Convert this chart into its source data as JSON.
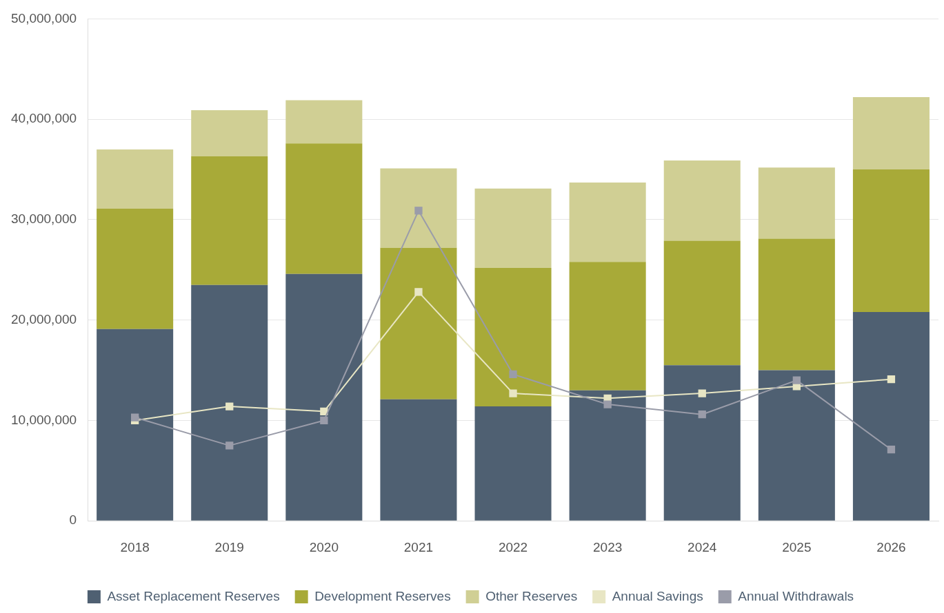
{
  "chart_data": {
    "type": "bar",
    "stacked": true,
    "categories": [
      "2018",
      "2019",
      "2020",
      "2021",
      "2022",
      "2023",
      "2024",
      "2025",
      "2026"
    ],
    "series": [
      {
        "name": "Asset Replacement Reserves",
        "color": "#4f6072",
        "values": [
          19100000,
          23500000,
          24600000,
          12100000,
          11400000,
          13000000,
          15500000,
          15000000,
          20800000
        ]
      },
      {
        "name": "Development Reserves",
        "color": "#a8aa38",
        "values": [
          12000000,
          12800000,
          13000000,
          15100000,
          13800000,
          12800000,
          12400000,
          13100000,
          14200000
        ]
      },
      {
        "name": "Other Reserves",
        "color": "#d0cf94",
        "values": [
          5900000,
          4600000,
          4300000,
          7900000,
          7900000,
          7900000,
          8000000,
          7100000,
          7200000
        ]
      },
      {
        "name": "Annual Savings",
        "type": "line",
        "color": "#e8e6c4",
        "values": [
          10000000,
          11400000,
          10900000,
          22800000,
          12700000,
          12200000,
          12700000,
          13400000,
          14100000
        ]
      },
      {
        "name": "Annual Withdrawals",
        "type": "line",
        "color": "#9a9ca9",
        "values": [
          10300000,
          7500000,
          10000000,
          30900000,
          14600000,
          11600000,
          10600000,
          14000000,
          7100000
        ]
      }
    ],
    "ylim": [
      0,
      50000000
    ],
    "yticks": [
      {
        "value": 0,
        "label": "0"
      },
      {
        "value": 10000000,
        "label": "10,000,000"
      },
      {
        "value": 20000000,
        "label": "20,000,000"
      },
      {
        "value": 30000000,
        "label": "30,000,000"
      },
      {
        "value": 40000000,
        "label": "40,000,000"
      },
      {
        "value": 50000000,
        "label": "50,000,000"
      }
    ],
    "grid": "y",
    "legend": "bottom",
    "marker": "square",
    "line_style": "solid"
  }
}
